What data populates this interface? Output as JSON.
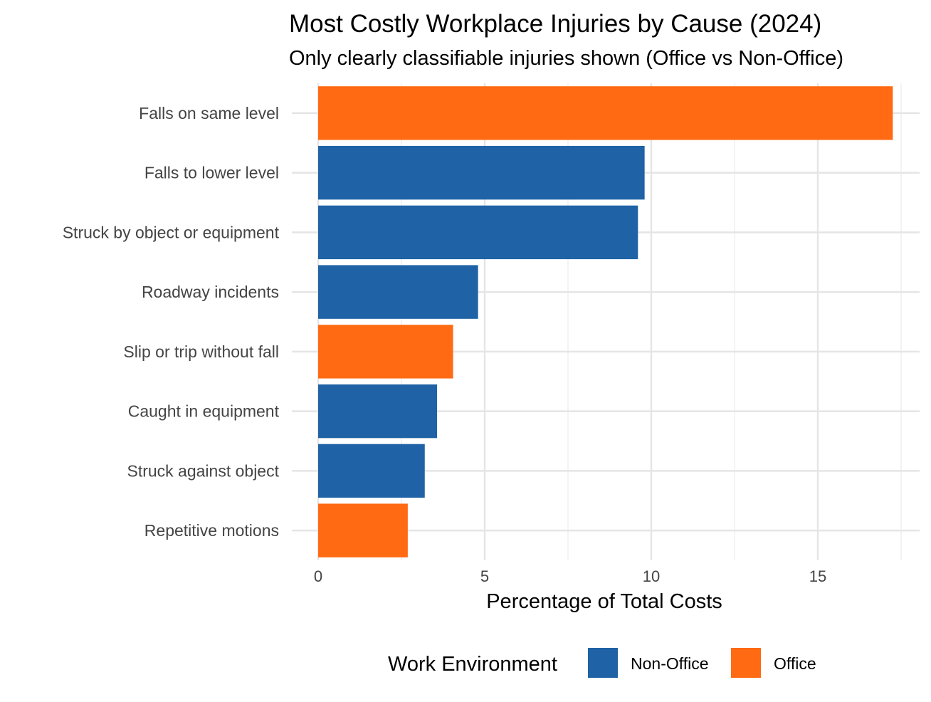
{
  "chart_data": {
    "type": "bar",
    "orientation": "horizontal",
    "title": "Most Costly Workplace Injuries by Cause (2024)",
    "subtitle": "Only clearly classifiable injuries shown (Office vs Non-Office)",
    "xlabel": "Percentage of Total Costs",
    "ylabel": "",
    "xlim": [
      0,
      17.6
    ],
    "xticks": [
      0,
      5,
      10,
      15
    ],
    "xtick_labels": [
      "0",
      "5",
      "10",
      "15"
    ],
    "grid": true,
    "legend": {
      "title": "Work Environment",
      "position": "bottom",
      "entries": [
        {
          "name": "Non-Office",
          "color": "#1f62a5"
        },
        {
          "name": "Office",
          "color": "#ff6a12"
        }
      ]
    },
    "categories": [
      "Falls on same level",
      "Falls to lower level",
      "Struck by object or equipment",
      "Roadway incidents",
      "Slip or trip without fall",
      "Caught in equipment",
      "Struck against object",
      "Repetitive motions"
    ],
    "values": [
      17.25,
      9.8,
      9.6,
      4.8,
      4.05,
      3.57,
      3.2,
      2.69
    ],
    "groups": [
      "Office",
      "Non-Office",
      "Non-Office",
      "Non-Office",
      "Office",
      "Non-Office",
      "Non-Office",
      "Office"
    ]
  }
}
